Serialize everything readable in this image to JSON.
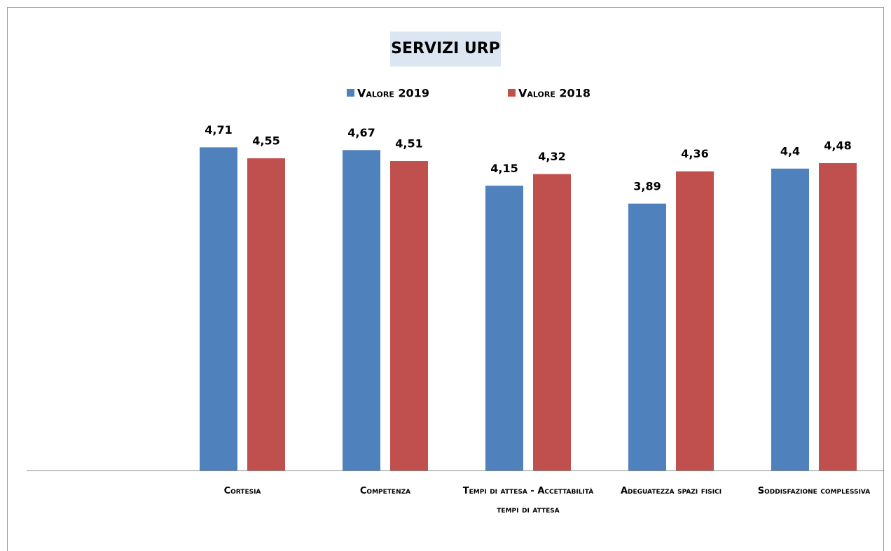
{
  "chart_data": {
    "type": "bar",
    "title": "SERVIZI URP",
    "categories": [
      "Cortesia",
      "Competenza",
      "Tempi di attesa - Accettabilità tempi di attesa",
      "Adeguatezza spazi fisici",
      "Soddisfazione complessiva"
    ],
    "series": [
      {
        "name": "Valore 2019",
        "color": "#4f81bd",
        "values": [
          4.71,
          4.67,
          4.15,
          3.89,
          4.4
        ],
        "value_labels": [
          "4,71",
          "4,67",
          "4,15",
          "3,89",
          "4,4"
        ]
      },
      {
        "name": "Valore 2018",
        "color": "#c0504d",
        "values": [
          4.55,
          4.51,
          4.32,
          4.36,
          4.48
        ],
        "value_labels": [
          "4,55",
          "4,51",
          "4,32",
          "4,36",
          "4,48"
        ]
      }
    ],
    "ylim": [
      0,
      5
    ],
    "legend": "top"
  }
}
